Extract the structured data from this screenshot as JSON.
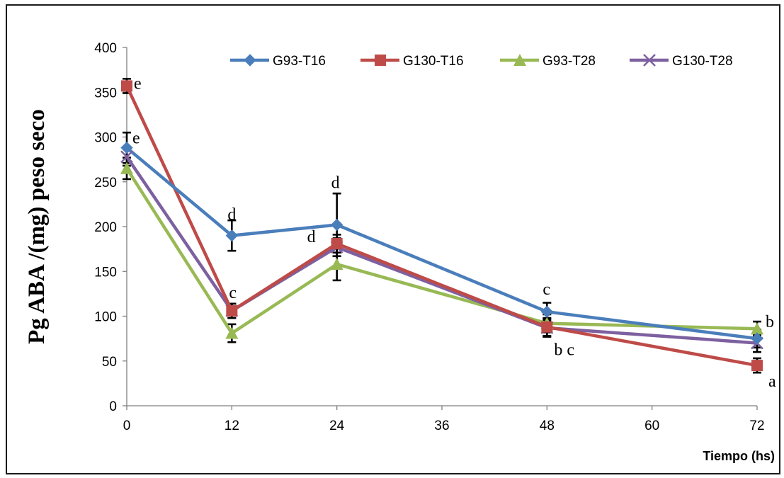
{
  "chart_data": {
    "type": "line",
    "xlabel": "Tiempo (hs)",
    "ylabel": "Pg ABA /(mg) peso seco",
    "xlim": [
      0,
      72
    ],
    "ylim": [
      0,
      400
    ],
    "x_ticks": [
      0,
      12,
      24,
      36,
      48,
      60,
      72
    ],
    "y_ticks": [
      0,
      50,
      100,
      150,
      200,
      250,
      300,
      350,
      400
    ],
    "grid": false,
    "legend_position": "top",
    "series": [
      {
        "name": "G93-T16",
        "color": "#4a7ebb",
        "marker": "diamond",
        "x": [
          0,
          12,
          24,
          48,
          72
        ],
        "y": [
          288,
          190,
          202,
          105,
          75
        ],
        "error": [
          17,
          17,
          35,
          10,
          10
        ]
      },
      {
        "name": "G130-T16",
        "color": "#be4b48",
        "marker": "square",
        "x": [
          0,
          12,
          24,
          48,
          72
        ],
        "y": [
          357,
          106,
          181,
          88,
          45
        ],
        "error": [
          8,
          8,
          10,
          10,
          8
        ]
      },
      {
        "name": "G93-T28",
        "color": "#98b954",
        "marker": "triangle",
        "x": [
          0,
          12,
          24,
          48,
          72
        ],
        "y": [
          265,
          81,
          158,
          92,
          86
        ],
        "error": [
          12,
          10,
          18,
          10,
          8
        ]
      },
      {
        "name": "G130-T28",
        "color": "#7d60a0",
        "marker": "x",
        "x": [
          0,
          12,
          24,
          48,
          72
        ],
        "y": [
          278,
          106,
          177,
          87,
          70
        ],
        "error": [
          10,
          8,
          10,
          10,
          10
        ]
      }
    ],
    "annotations": [
      {
        "text": "e",
        "x": 0,
        "y": 357
      },
      {
        "text": "e",
        "x": 0,
        "y": 288
      },
      {
        "text": "d",
        "x": 12,
        "y": 190
      },
      {
        "text": "c",
        "x": 12,
        "y": 106
      },
      {
        "text": "d",
        "x": 24,
        "y": 202
      },
      {
        "text": "d",
        "x": 24,
        "y": 181
      },
      {
        "text": "c",
        "x": 48,
        "y": 105
      },
      {
        "text": "b c",
        "x": 48,
        "y": 88
      },
      {
        "text": "b",
        "x": 72,
        "y": 86
      },
      {
        "text": "a",
        "x": 72,
        "y": 45
      }
    ]
  }
}
